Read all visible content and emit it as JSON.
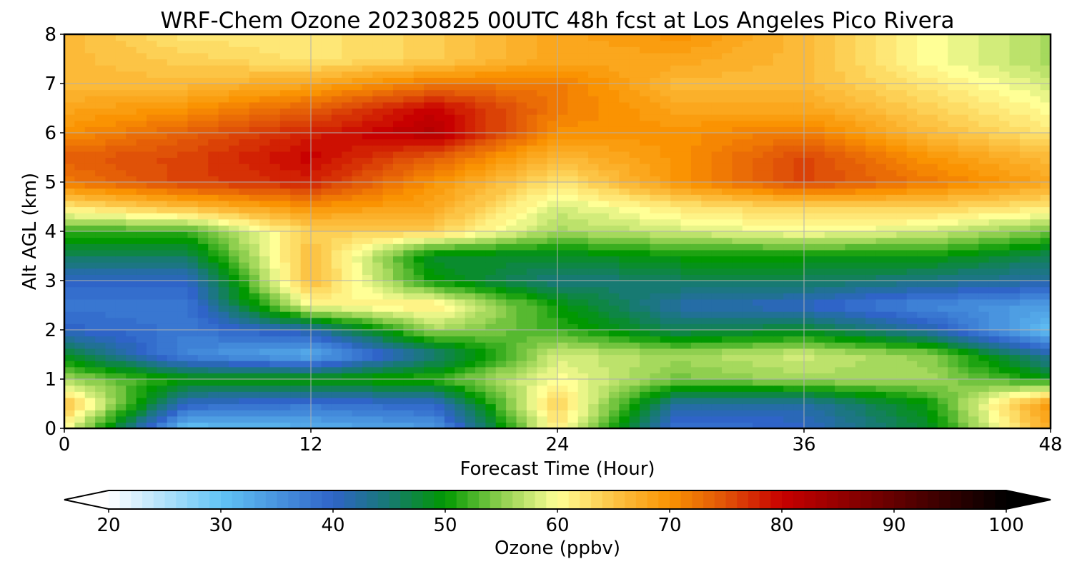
{
  "chart_data": {
    "type": "heatmap",
    "subtype": "filled-contour",
    "title": "WRF-Chem Ozone  20230825 00UTC 48h fcst at Los Angeles Pico Rivera",
    "xlabel": "Forecast Time (Hour)",
    "ylabel": "Alt AGL (km)",
    "xlim": [
      0,
      48
    ],
    "ylim": [
      0,
      8
    ],
    "x_ticks": [
      0,
      12,
      24,
      36,
      48
    ],
    "y_ticks": [
      0,
      1,
      2,
      3,
      4,
      5,
      6,
      7,
      8
    ],
    "grid": true,
    "x": [
      0,
      6,
      12,
      18,
      24,
      30,
      36,
      42,
      48
    ],
    "y": [
      0,
      0.5,
      1,
      1.5,
      2,
      2.5,
      3,
      3.5,
      4,
      4.5,
      5,
      5.5,
      6,
      6.5,
      7,
      7.5,
      8
    ],
    "z": [
      [
        60,
        30,
        32,
        34,
        62,
        38,
        40,
        48,
        68
      ],
      [
        66,
        40,
        38,
        40,
        64,
        42,
        42,
        50,
        70
      ],
      [
        56,
        50,
        50,
        52,
        60,
        54,
        56,
        56,
        50
      ],
      [
        48,
        36,
        32,
        44,
        58,
        56,
        58,
        55,
        42
      ],
      [
        40,
        38,
        42,
        56,
        52,
        46,
        48,
        42,
        30
      ],
      [
        38,
        38,
        60,
        62,
        50,
        42,
        40,
        36,
        34
      ],
      [
        40,
        40,
        66,
        50,
        44,
        46,
        46,
        44,
        42
      ],
      [
        46,
        46,
        66,
        48,
        48,
        50,
        50,
        50,
        46
      ],
      [
        52,
        52,
        64,
        64,
        56,
        58,
        60,
        58,
        54
      ],
      [
        62,
        66,
        70,
        68,
        58,
        62,
        64,
        64,
        62
      ],
      [
        72,
        76,
        78,
        70,
        62,
        70,
        76,
        72,
        68
      ],
      [
        74,
        76,
        80,
        74,
        66,
        70,
        76,
        70,
        66
      ],
      [
        70,
        74,
        78,
        82,
        70,
        70,
        72,
        66,
        62
      ],
      [
        68,
        70,
        74,
        80,
        72,
        68,
        68,
        64,
        60
      ],
      [
        66,
        66,
        68,
        72,
        72,
        66,
        66,
        62,
        58
      ],
      [
        66,
        64,
        62,
        64,
        68,
        68,
        66,
        60,
        56
      ],
      [
        66,
        62,
        62,
        64,
        68,
        70,
        66,
        60,
        56
      ]
    ],
    "colorbar": {
      "label": "Ozone  (ppbv)",
      "min": 20,
      "max": 100,
      "ticks": [
        20,
        30,
        40,
        50,
        60,
        70,
        80,
        90,
        100
      ],
      "extend": "both",
      "placement": "bottom",
      "stops": [
        {
          "value": 20,
          "color": "#ffffff"
        },
        {
          "value": 30,
          "color": "#62c4f5"
        },
        {
          "value": 40,
          "color": "#2f64c8"
        },
        {
          "value": 45,
          "color": "#177a72"
        },
        {
          "value": 50,
          "color": "#019801"
        },
        {
          "value": 55,
          "color": "#8fcf4f"
        },
        {
          "value": 60,
          "color": "#ffff96"
        },
        {
          "value": 65,
          "color": "#fcc445"
        },
        {
          "value": 70,
          "color": "#fa9302"
        },
        {
          "value": 75,
          "color": "#e05208"
        },
        {
          "value": 80,
          "color": "#c80000"
        },
        {
          "value": 90,
          "color": "#640000"
        },
        {
          "value": 100,
          "color": "#000000"
        }
      ],
      "under_color": "#ffffff",
      "over_color": "#000000"
    }
  }
}
